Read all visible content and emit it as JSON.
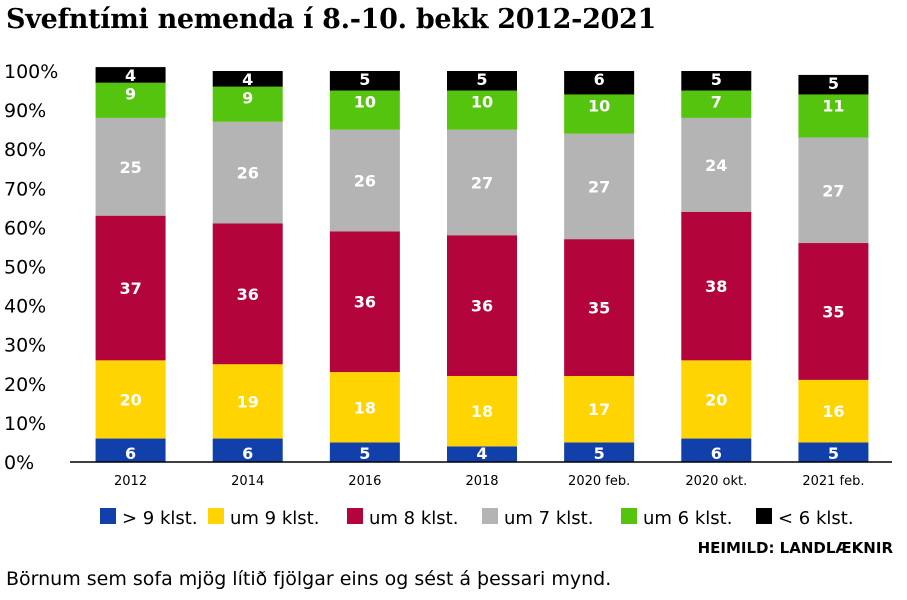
{
  "title": "Svefntími nemenda í 8.-10. bekk 2012-2021",
  "source": "HEIMILD: LANDLÆKNIR",
  "caption": "Börnum sem sofa mjög lítið fjölgar eins og sést á þessari mynd.",
  "chart_data": {
    "type": "bar",
    "stacked": true,
    "percent": true,
    "categories": [
      "2012",
      "2014",
      "2016",
      "2018",
      "2020 feb.",
      "2020 okt.",
      "2021 feb."
    ],
    "ylim": [
      0,
      100
    ],
    "yticks": [
      "0%",
      "10%",
      "20%",
      "30%",
      "40%",
      "50%",
      "60%",
      "70%",
      "80%",
      "90%",
      "100%"
    ],
    "legend_position": "bottom",
    "series": [
      {
        "name": "> 9 klst.",
        "color": "#1240ab",
        "values": [
          6,
          6,
          5,
          4,
          5,
          6,
          5
        ]
      },
      {
        "name": "um 9 klst.",
        "color": "#ffd400",
        "values": [
          20,
          19,
          18,
          18,
          17,
          20,
          16
        ]
      },
      {
        "name": "um 8 klst.",
        "color": "#b3053c",
        "values": [
          37,
          36,
          36,
          36,
          35,
          38,
          35
        ]
      },
      {
        "name": "um 7 klst.",
        "color": "#b4b4b4",
        "values": [
          25,
          26,
          26,
          27,
          27,
          24,
          27
        ]
      },
      {
        "name": "um 6 klst.",
        "color": "#55c40f",
        "values": [
          9,
          9,
          10,
          10,
          10,
          7,
          11
        ]
      },
      {
        "name": "< 6 klst.",
        "color": "#000000",
        "values": [
          4,
          4,
          5,
          5,
          6,
          5,
          5
        ]
      }
    ]
  }
}
